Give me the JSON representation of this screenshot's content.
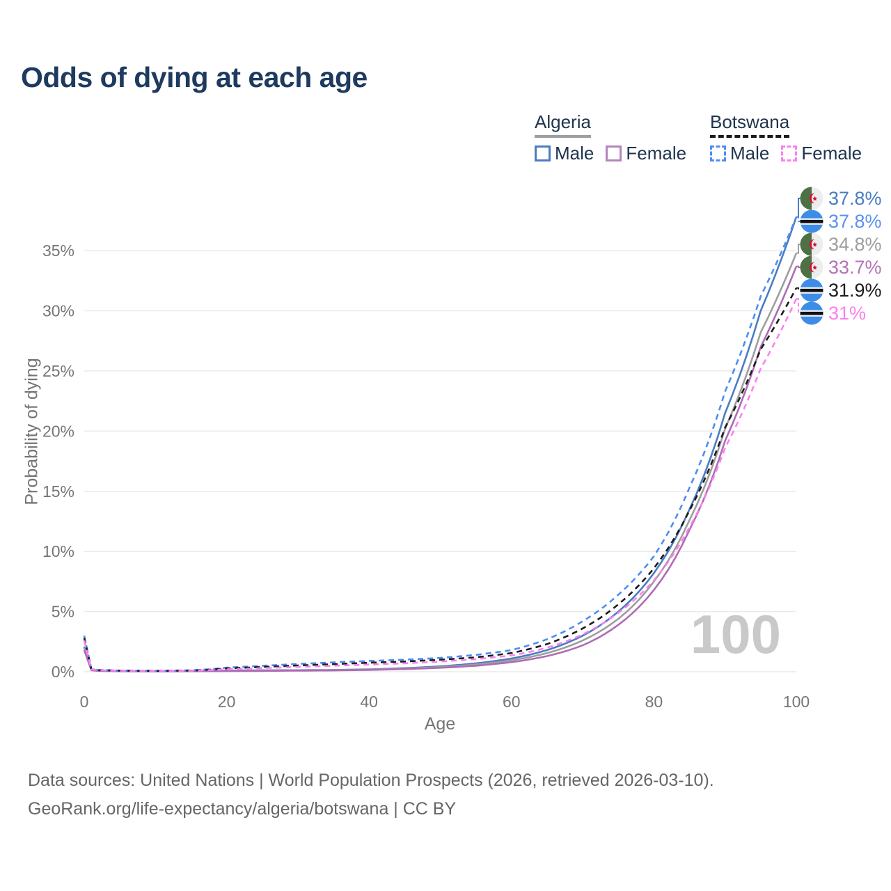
{
  "title": "Odds of dying at each age",
  "watermark": "100",
  "legend": {
    "groups": [
      {
        "label": "Algeria",
        "line_style": "solid",
        "line_color": "#9e9e9e",
        "items": [
          {
            "label": "Male",
            "color": "#4a7cc2",
            "style": "solid"
          },
          {
            "label": "Female",
            "color": "#b783bd",
            "style": "solid"
          }
        ]
      },
      {
        "label": "Botswana",
        "line_style": "dashed",
        "line_color": "#1a1a1a",
        "items": [
          {
            "label": "Male",
            "color": "#4d8df5",
            "style": "dashed"
          },
          {
            "label": "Female",
            "color": "#fb80f0",
            "style": "dashed"
          }
        ]
      }
    ]
  },
  "chart_data": {
    "type": "line",
    "title": "Odds of dying at each age",
    "xlabel": "Age",
    "ylabel": "Probability of dying",
    "xlim": [
      0,
      100
    ],
    "ylim": [
      0,
      38.8
    ],
    "xticks": [
      0,
      20,
      40,
      60,
      80,
      100
    ],
    "yticks": [
      0,
      5,
      10,
      15,
      20,
      25,
      30,
      35
    ],
    "ytick_suffix": "%",
    "grid": "horizontal",
    "legend_position": "top-right",
    "x": [
      0,
      1,
      2,
      5,
      10,
      15,
      20,
      25,
      30,
      35,
      40,
      45,
      50,
      55,
      60,
      65,
      70,
      75,
      80,
      85,
      90,
      95,
      100
    ],
    "series": [
      {
        "name": "Algeria Male",
        "flag": "algeria",
        "color": "#4a7cc2",
        "dash": false,
        "end_label": "37.8%",
        "label_color": "#4a7cc2",
        "values": [
          2.1,
          0.15,
          0.08,
          0.05,
          0.04,
          0.06,
          0.1,
          0.12,
          0.13,
          0.15,
          0.2,
          0.3,
          0.45,
          0.7,
          1.1,
          1.8,
          3.0,
          5.0,
          8.2,
          13.5,
          21.5,
          30.0,
          37.8
        ]
      },
      {
        "name": "Botswana Male",
        "flag": "botswana",
        "color": "#4d8df5",
        "dash": true,
        "end_label": "37.8%",
        "label_color": "#5b92f0",
        "values": [
          3.0,
          0.25,
          0.15,
          0.1,
          0.08,
          0.12,
          0.35,
          0.5,
          0.65,
          0.78,
          0.9,
          1.0,
          1.15,
          1.4,
          1.8,
          2.7,
          4.2,
          6.4,
          9.6,
          15.3,
          23.3,
          31.2,
          37.8
        ]
      },
      {
        "name": "Algeria",
        "flag": "algeria",
        "color": "#9e9e9e",
        "dash": false,
        "end_label": "34.8%",
        "label_color": "#9e9e9e",
        "values": [
          2.0,
          0.14,
          0.075,
          0.045,
          0.035,
          0.05,
          0.08,
          0.1,
          0.11,
          0.13,
          0.18,
          0.26,
          0.39,
          0.6,
          0.95,
          1.55,
          2.6,
          4.4,
          7.5,
          12.6,
          20.2,
          28.2,
          34.8
        ]
      },
      {
        "name": "Algeria Female",
        "flag": "algeria",
        "color": "#ad6cb5",
        "dash": false,
        "end_label": "33.7%",
        "label_color": "#b273b5",
        "values": [
          1.8,
          0.13,
          0.07,
          0.04,
          0.03,
          0.04,
          0.05,
          0.07,
          0.09,
          0.11,
          0.15,
          0.22,
          0.33,
          0.5,
          0.8,
          1.3,
          2.2,
          3.9,
          6.8,
          11.8,
          19.2,
          27.0,
          33.7
        ]
      },
      {
        "name": "Botswana",
        "flag": "botswana",
        "color": "#1c1c1c",
        "dash": true,
        "end_label": "31.9%",
        "label_color": "#1c1c1c",
        "values": [
          2.8,
          0.22,
          0.13,
          0.09,
          0.07,
          0.1,
          0.28,
          0.4,
          0.52,
          0.63,
          0.75,
          0.85,
          1.0,
          1.2,
          1.55,
          2.3,
          3.6,
          5.6,
          8.6,
          13.4,
          20.3,
          26.8,
          31.9
        ]
      },
      {
        "name": "Botswana Female",
        "flag": "botswana",
        "color": "#fb80f0",
        "dash": true,
        "end_label": "31%",
        "label_color": "#fb80f0",
        "values": [
          2.6,
          0.2,
          0.12,
          0.08,
          0.06,
          0.08,
          0.2,
          0.3,
          0.4,
          0.5,
          0.6,
          0.7,
          0.85,
          1.05,
          1.35,
          2.0,
          3.1,
          4.9,
          7.6,
          12.0,
          18.6,
          25.2,
          31.0
        ]
      }
    ]
  },
  "footer": {
    "line1": "Data sources: United Nations | World Population Prospects (2026, retrieved 2026-03-10).",
    "line2": "GeoRank.org/life-expectancy/algeria/botswana | CC BY"
  }
}
